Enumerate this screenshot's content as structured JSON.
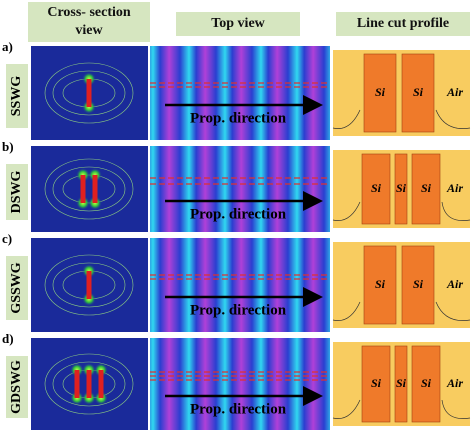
{
  "headers": [
    "Cross- section view",
    "Top view",
    "Line cut profile"
  ],
  "rows": [
    {
      "letter": "a)",
      "name": "SSWG",
      "arrow_label": "Prop. direction",
      "profile_labels": [
        "Si",
        "Si",
        "Air"
      ]
    },
    {
      "letter": "b)",
      "name": "DSWG",
      "arrow_label": "Prop. direction",
      "profile_labels": [
        "Si",
        "Si",
        "Si",
        "Air"
      ]
    },
    {
      "letter": "c)",
      "name": "GSSWG",
      "arrow_label": "Prop. direction",
      "profile_labels": [
        "Si",
        "Si",
        "Air"
      ]
    },
    {
      "letter": "d)",
      "name": "GDSWG",
      "arrow_label": "Prop. direction",
      "profile_labels": [
        "Si",
        "Si",
        "Si",
        "Air"
      ]
    }
  ]
}
